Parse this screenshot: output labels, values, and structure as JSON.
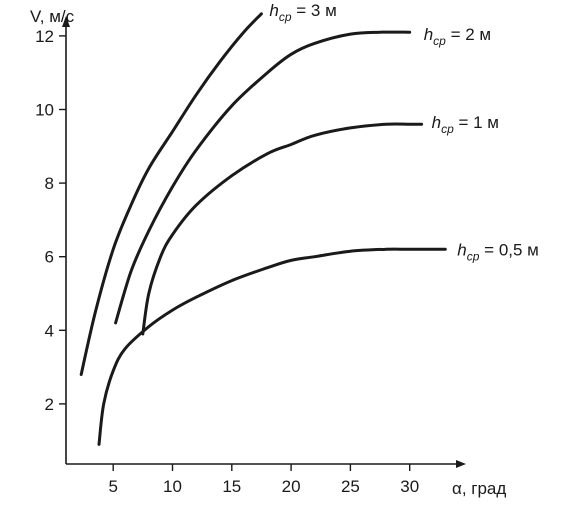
{
  "chart_data": {
    "type": "line",
    "title": "",
    "xlabel": "α, град",
    "ylabel": "V, м/с",
    "xlim": [
      1,
      34
    ],
    "ylim": [
      0.5,
      13
    ],
    "xticks": [
      5,
      10,
      15,
      20,
      25,
      30
    ],
    "yticks": [
      2,
      4,
      6,
      8,
      10,
      12
    ],
    "grid": false,
    "legend": "inline labels at curve ends",
    "series": [
      {
        "name": "hср = 3 м",
        "label_parts": {
          "h": "h",
          "sub": "ср",
          "rest": " = 3 м"
        },
        "x": [
          2.3,
          3.5,
          5,
          6.5,
          8,
          10,
          12,
          14,
          16,
          17.5
        ],
        "y": [
          2.8,
          4.5,
          6.2,
          7.4,
          8.4,
          9.4,
          10.4,
          11.3,
          12.1,
          12.6
        ]
      },
      {
        "name": "hср = 2 м",
        "label_parts": {
          "h": "h",
          "sub": "ср",
          "rest": " = 2 м"
        },
        "x": [
          5.2,
          6.5,
          8,
          10,
          12,
          15,
          18,
          20,
          22,
          25,
          27.5,
          30
        ],
        "y": [
          4.2,
          5.6,
          6.7,
          7.9,
          8.9,
          10.1,
          11.0,
          11.5,
          11.8,
          12.05,
          12.1,
          12.1
        ]
      },
      {
        "name": "hср = 1 м",
        "label_parts": {
          "h": "h",
          "sub": "ср",
          "rest": " = 1 м"
        },
        "x": [
          7.5,
          8,
          9,
          10,
          12,
          15,
          18,
          20,
          22,
          25,
          28,
          30,
          31
        ],
        "y": [
          3.9,
          5.0,
          6.0,
          6.6,
          7.4,
          8.2,
          8.8,
          9.05,
          9.3,
          9.5,
          9.6,
          9.6,
          9.6
        ]
      },
      {
        "name": "hср = 0,5 м",
        "label_parts": {
          "h": "h",
          "sub": "ср",
          "rest": " = 0,5 м"
        },
        "x": [
          3.8,
          4.2,
          5,
          6,
          8,
          10,
          12,
          15,
          18,
          20,
          22,
          25,
          28,
          30,
          33
        ],
        "y": [
          0.9,
          2.0,
          2.9,
          3.5,
          4.1,
          4.55,
          4.9,
          5.35,
          5.7,
          5.9,
          6.0,
          6.15,
          6.2,
          6.2,
          6.2
        ]
      }
    ]
  }
}
